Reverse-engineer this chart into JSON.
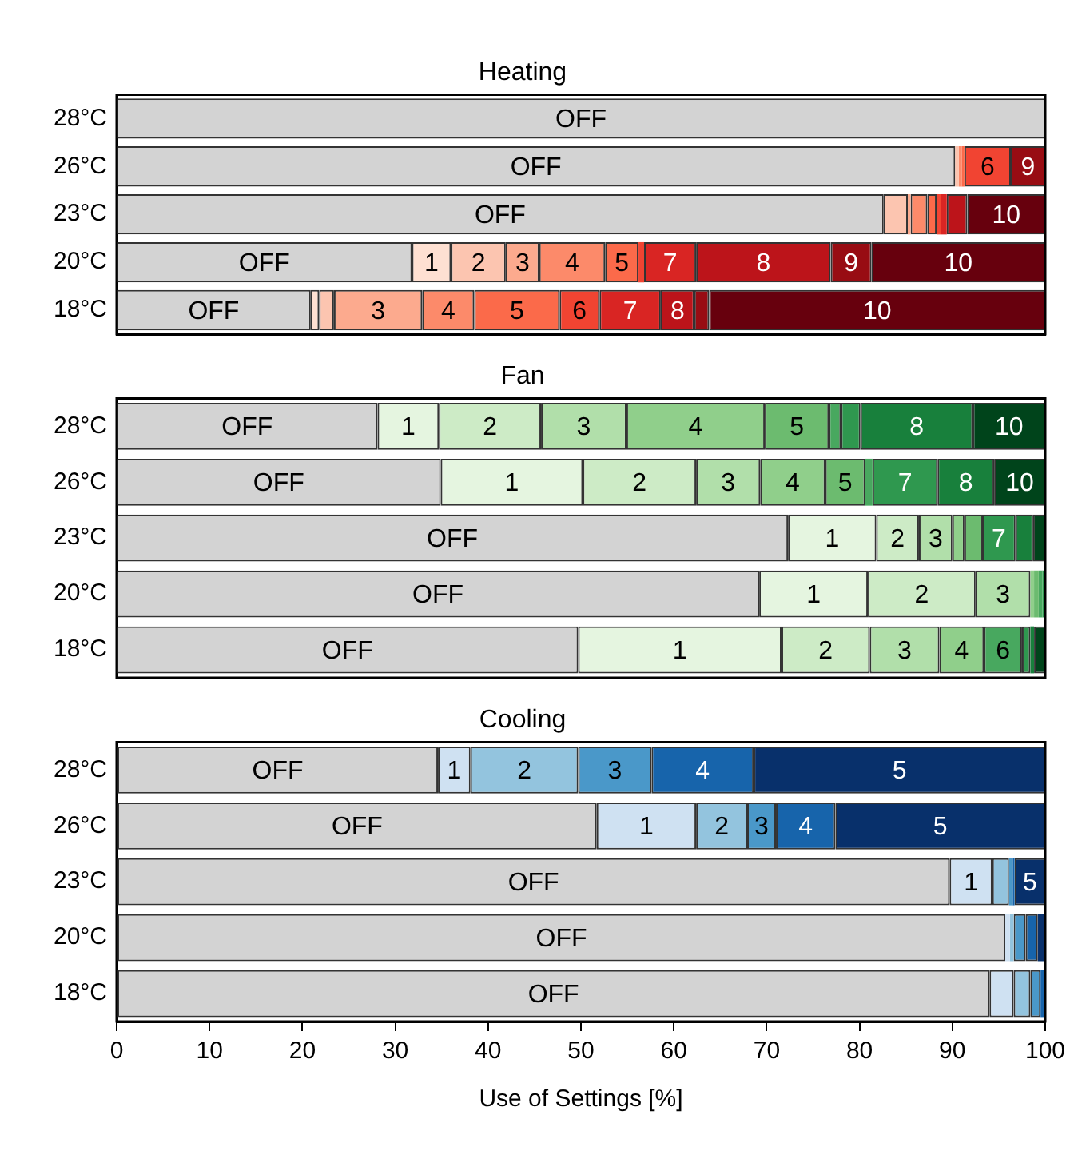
{
  "chart_data": [
    {
      "type": "bar",
      "title": "Heating",
      "orientation": "horizontal",
      "stacked": true,
      "categories": [
        "28°C",
        "26°C",
        "23°C",
        "20°C",
        "18°C"
      ],
      "xlim": [
        0,
        100
      ],
      "tick_labels": "y",
      "grid": false,
      "legend": false,
      "series": [
        {
          "name": "OFF",
          "color": "#d3d3d3",
          "values": [
            100,
            90.3,
            82.6,
            31.8,
            20.9
          ]
        },
        {
          "name": "1",
          "color": "#fee0d2",
          "values": [
            0,
            null,
            0,
            4.2,
            0.9
          ]
        },
        {
          "name": "2",
          "color": "#fcc5b0",
          "values": [
            0,
            0.4,
            2.6,
            5.9,
            1.6
          ]
        },
        {
          "name": "3",
          "color": "#fcaa8e",
          "values": [
            0,
            0,
            0.3,
            3.6,
            9.5
          ]
        },
        {
          "name": "4",
          "color": "#fc8a6a",
          "values": [
            0,
            0.3,
            1.8,
            7.1,
            5.6
          ]
        },
        {
          "name": "5",
          "color": "#fb6a4a",
          "values": [
            0,
            0.3,
            1.0,
            3.6,
            9.2
          ]
        },
        {
          "name": "6",
          "color": "#f14432",
          "values": [
            0,
            5.0,
            0.5,
            0.6,
            4.3
          ]
        },
        {
          "name": "7",
          "color": "#d92523",
          "values": [
            0,
            0,
            0.6,
            5.6,
            6.6
          ]
        },
        {
          "name": "8",
          "color": "#bc141a",
          "values": [
            0,
            0,
            2.2,
            14.5,
            3.6
          ]
        },
        {
          "name": "9",
          "color": "#980c13",
          "values": [
            0,
            3.7,
            0,
            4.4,
            1.6
          ]
        },
        {
          "name": "10",
          "color": "#67000d",
          "values": [
            0,
            0,
            8.4,
            18.7,
            36.2
          ]
        }
      ]
    },
    {
      "type": "bar",
      "title": "Fan",
      "orientation": "horizontal",
      "stacked": true,
      "categories": [
        "28°C",
        "26°C",
        "23°C",
        "20°C",
        "18°C"
      ],
      "xlim": [
        0,
        100
      ],
      "tick_labels": "y",
      "grid": false,
      "legend": false,
      "series": [
        {
          "name": "OFF",
          "color": "#d3d3d3",
          "values": [
            28.1,
            34.9,
            72.3,
            69.2,
            49.7
          ]
        },
        {
          "name": "1",
          "color": "#e5f5e0",
          "values": [
            6.6,
            15.3,
            9.5,
            11.7,
            21.9
          ]
        },
        {
          "name": "2",
          "color": "#cdebc6",
          "values": [
            11.0,
            12.2,
            4.6,
            11.6,
            9.5
          ]
        },
        {
          "name": "3",
          "color": "#b1dfaa",
          "values": [
            9.2,
            6.9,
            3.6,
            5.9,
            7.5
          ]
        },
        {
          "name": "4",
          "color": "#90cf8b",
          "values": [
            14.9,
            7.0,
            1.3,
            0.4,
            4.8
          ]
        },
        {
          "name": "5",
          "color": "#6cbb6f",
          "values": [
            6.9,
            4.3,
            1.9,
            0.5,
            0
          ]
        },
        {
          "name": "6",
          "color": "#48a85f",
          "values": [
            1.3,
            0.8,
            0,
            0.4,
            4.1
          ]
        },
        {
          "name": "7",
          "color": "#2f984f",
          "values": [
            2.1,
            7.0,
            3.6,
            0.3,
            0.9
          ]
        },
        {
          "name": "8",
          "color": "#18803c",
          "values": [
            12.1,
            6.1,
            1.9,
            0,
            0.4
          ]
        },
        {
          "name": "9",
          "color": "#04672b",
          "values": [
            0,
            0,
            0,
            0,
            0
          ]
        },
        {
          "name": "10",
          "color": "#00441b",
          "values": [
            7.8,
            5.5,
            1.3,
            0,
            1.2
          ]
        }
      ]
    },
    {
      "type": "bar",
      "title": "Cooling",
      "xlabel": "Use of Settings [%]",
      "orientation": "horizontal",
      "stacked": true,
      "categories": [
        "28°C",
        "26°C",
        "23°C",
        "20°C",
        "18°C"
      ],
      "xlim": [
        0,
        100
      ],
      "xticks": [
        0,
        10,
        20,
        30,
        40,
        50,
        60,
        70,
        80,
        90,
        100
      ],
      "grid": false,
      "legend": false,
      "series": [
        {
          "name": "OFF",
          "color": "#d3d3d3",
          "values": [
            34.6,
            51.7,
            89.7,
            95.7,
            94.0
          ]
        },
        {
          "name": "1",
          "color": "#cfe1f2",
          "values": [
            3.5,
            10.7,
            4.6,
            0.5,
            2.6
          ]
        },
        {
          "name": "2",
          "color": "#93c4de",
          "values": [
            11.6,
            5.5,
            1.8,
            0.4,
            1.8
          ]
        },
        {
          "name": "3",
          "color": "#4a98c9",
          "values": [
            7.9,
            3.1,
            0.4,
            1.3,
            1.1
          ]
        },
        {
          "name": "4",
          "color": "#1764ab",
          "values": [
            11.0,
            6.4,
            0.2,
            1.3,
            0.5
          ]
        },
        {
          "name": "5",
          "color": "#08306b",
          "values": [
            31.4,
            22.6,
            3.3,
            0.8,
            null
          ]
        }
      ]
    }
  ]
}
